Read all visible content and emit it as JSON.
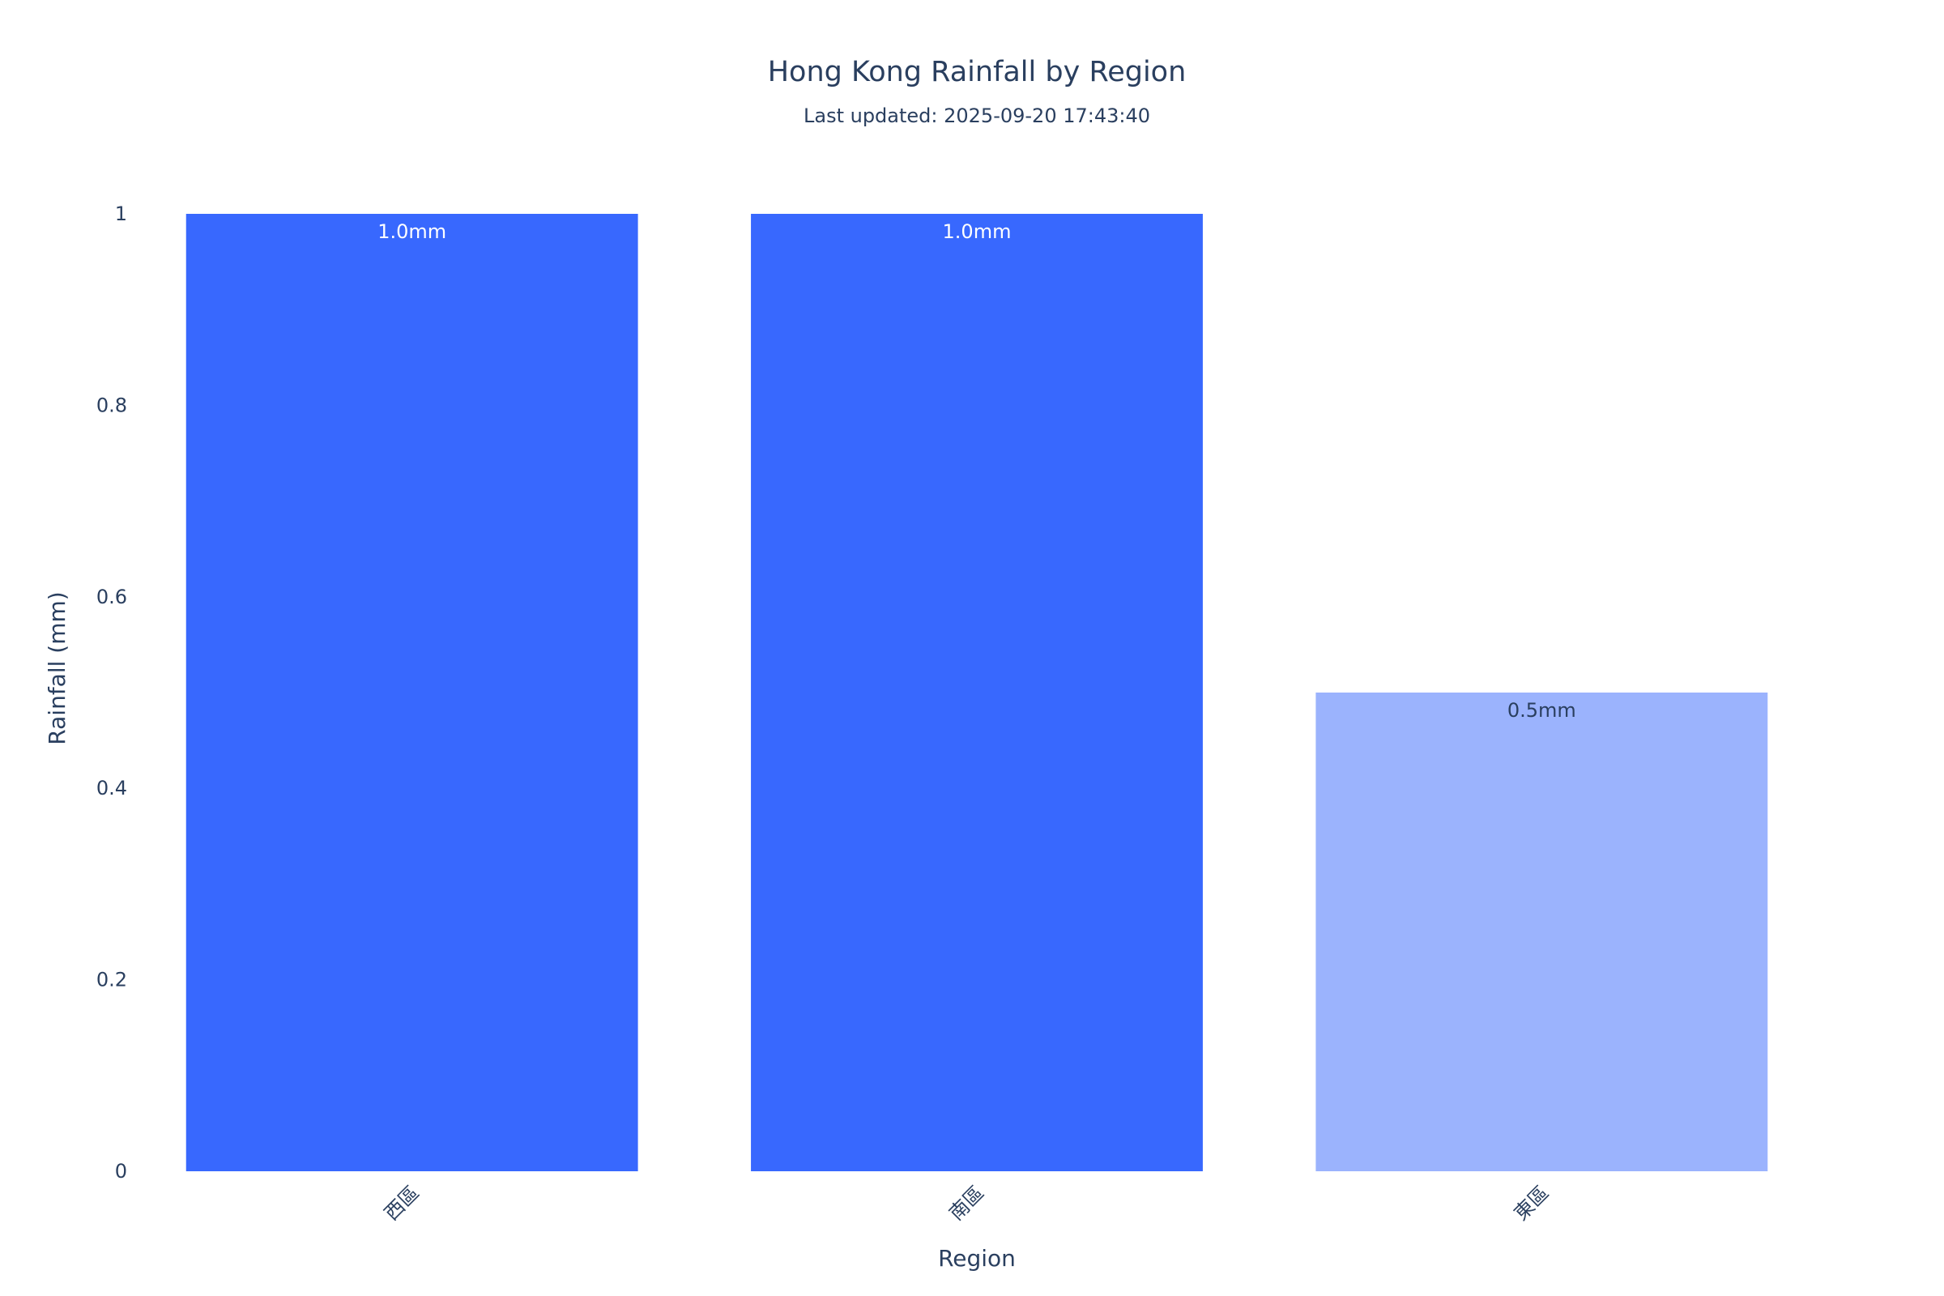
{
  "chart_data": {
    "type": "bar",
    "title": "Hong Kong Rainfall by Region",
    "subtitle": "Last updated: 2025-09-20 17:43:40",
    "xlabel": "Region",
    "ylabel": "Rainfall (mm)",
    "categories": [
      "西區",
      "南區",
      "東區"
    ],
    "values": [
      1.0,
      1.0,
      0.5
    ],
    "data_labels": [
      "1.0mm",
      "1.0mm",
      "0.5mm"
    ],
    "bar_colors": [
      "#3868fe",
      "#3868fe",
      "#9bb3fd"
    ],
    "data_label_colors": [
      "#ffffff",
      "#ffffff",
      "#2a3f5f"
    ],
    "ylim": [
      0,
      1
    ],
    "yticks": [
      0,
      0.2,
      0.4,
      0.6,
      0.8,
      1
    ],
    "ytick_labels": [
      "0",
      "0.2",
      "0.4",
      "0.6",
      "0.8",
      "1"
    ],
    "grid": false,
    "legend": "none",
    "x_tick_rotation": "-45deg"
  }
}
